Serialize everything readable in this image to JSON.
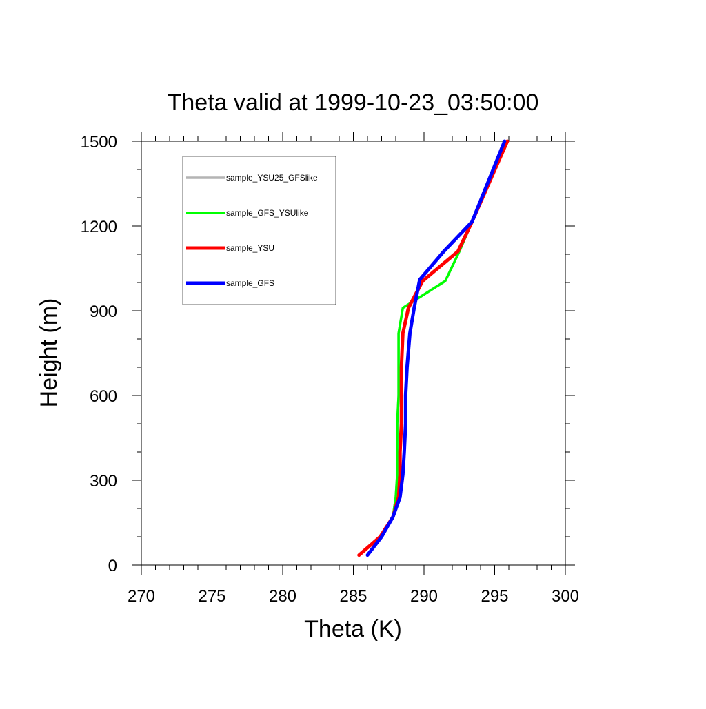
{
  "chart_data": {
    "type": "line",
    "title": "Theta valid at 1999-10-23_03:50:00",
    "xlabel": "Theta (K)",
    "ylabel": "Height (m)",
    "xlim": [
      270,
      300
    ],
    "ylim": [
      0,
      1500
    ],
    "x_ticks": [
      270,
      275,
      280,
      285,
      290,
      295,
      300
    ],
    "y_ticks": [
      0,
      300,
      600,
      900,
      1200,
      1500
    ],
    "x_tick_labels": [
      "270",
      "275",
      "280",
      "285",
      "290",
      "295",
      "300"
    ],
    "y_tick_labels": [
      "0",
      "300",
      "600",
      "900",
      "1200",
      "1500"
    ],
    "grid": false,
    "legend_position": "top-left",
    "series": [
      {
        "name": "sample_YSU25_GFSlike",
        "color": "#b4b4b4",
        "line_width": "thin",
        "x": [
          285.4,
          286.9,
          287.8,
          288.0,
          288.1,
          288.1,
          288.1,
          288.2,
          288.2,
          288.2,
          288.5,
          291.5,
          292.5,
          293.4,
          295.9
        ],
        "y": [
          35,
          100,
          170,
          240,
          320,
          400,
          500,
          600,
          700,
          820,
          910,
          1005,
          1110,
          1215,
          1500
        ]
      },
      {
        "name": "sample_GFS_YSUlike",
        "color": "#00ff00",
        "line_width": "thin",
        "x": [
          285.4,
          286.9,
          287.8,
          288.0,
          288.1,
          288.1,
          288.1,
          288.2,
          288.2,
          288.2,
          288.5,
          291.5,
          292.5,
          293.4,
          295.9
        ],
        "y": [
          35,
          100,
          170,
          240,
          320,
          400,
          500,
          600,
          700,
          820,
          910,
          1005,
          1110,
          1215,
          1500
        ]
      },
      {
        "name": "sample_YSU",
        "color": "#ff0000",
        "line_width": "thick",
        "x": [
          285.4,
          286.9,
          287.8,
          288.2,
          288.3,
          288.3,
          288.4,
          288.4,
          288.4,
          288.5,
          288.9,
          289.9,
          292.4,
          293.4,
          295.9
        ],
        "y": [
          35,
          100,
          170,
          240,
          320,
          400,
          500,
          600,
          700,
          820,
          910,
          1005,
          1110,
          1215,
          1500
        ]
      },
      {
        "name": "sample_GFS",
        "color": "#0000ff",
        "line_width": "thick",
        "x": [
          286.0,
          287.0,
          287.8,
          288.3,
          288.5,
          288.6,
          288.7,
          288.7,
          288.8,
          289.0,
          289.3,
          289.7,
          291.4,
          293.4,
          295.7
        ],
        "y": [
          35,
          100,
          170,
          240,
          320,
          400,
          500,
          600,
          700,
          820,
          910,
          1010,
          1110,
          1215,
          1500
        ]
      }
    ]
  }
}
